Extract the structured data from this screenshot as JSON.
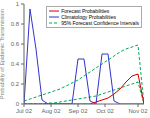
{
  "chart_data": {
    "type": "line",
    "title": "",
    "ylabel": "Probability of Epidemic Transmission",
    "x": [
      0,
      1,
      2,
      3,
      4,
      5,
      6,
      7,
      8,
      9,
      10,
      11,
      12,
      13,
      14,
      15,
      16,
      17,
      18,
      19,
      20
    ],
    "series": [
      {
        "name": "Forecast Probabilities",
        "color": "#cc0000",
        "line_style": "solid",
        "values": [
          0.0,
          0.0,
          0.0,
          0.0,
          0.0,
          0.0,
          0.0,
          0.0,
          0.0,
          0.0,
          0.0,
          0.0,
          0.02,
          0.04,
          0.06,
          0.1,
          0.15,
          0.22,
          0.28,
          0.3,
          0.0
        ]
      },
      {
        "name": "Climatology Probabilities",
        "color": "#3333cc",
        "line_style": "solid",
        "values": [
          0.0,
          0.95,
          0.55,
          0.04,
          0.0,
          0.0,
          0.0,
          0.0,
          0.0,
          0.45,
          0.45,
          0.03,
          0.0,
          0.5,
          0.5,
          0.03,
          0.0,
          0.0,
          0.0,
          0.0,
          0.0
        ]
      },
      {
        "name": "95% Forecast Confidence Intervals",
        "color": "#00aa55",
        "line_style": "dashed",
        "lower": [
          0.0,
          0.0,
          0.0,
          0.0,
          0.01,
          0.01,
          0.02,
          0.03,
          0.04,
          0.05,
          0.06,
          0.07,
          0.08,
          0.1,
          0.12,
          0.14,
          0.16,
          0.18,
          0.2,
          0.22,
          0.0
        ],
        "upper": [
          0.03,
          0.05,
          0.07,
          0.09,
          0.11,
          0.13,
          0.15,
          0.18,
          0.21,
          0.24,
          0.28,
          0.32,
          0.36,
          0.4,
          0.44,
          0.48,
          0.52,
          0.55,
          0.57,
          0.59,
          0.0
        ]
      }
    ],
    "xlim": [
      0,
      20
    ],
    "xticks": [
      {
        "value": 0,
        "label": "Jul 02"
      },
      {
        "value": 4.5,
        "label": "Aug 02"
      },
      {
        "value": 9,
        "label": "Sep 02"
      },
      {
        "value": 13.5,
        "label": "Oct 02"
      },
      {
        "value": 19,
        "label": "Nov 02"
      }
    ],
    "ylim": [
      0,
      1.0
    ],
    "yticks": [
      0,
      0.2,
      0.4,
      0.6,
      0.8,
      1
    ],
    "grid": false,
    "legend": "upper right"
  }
}
